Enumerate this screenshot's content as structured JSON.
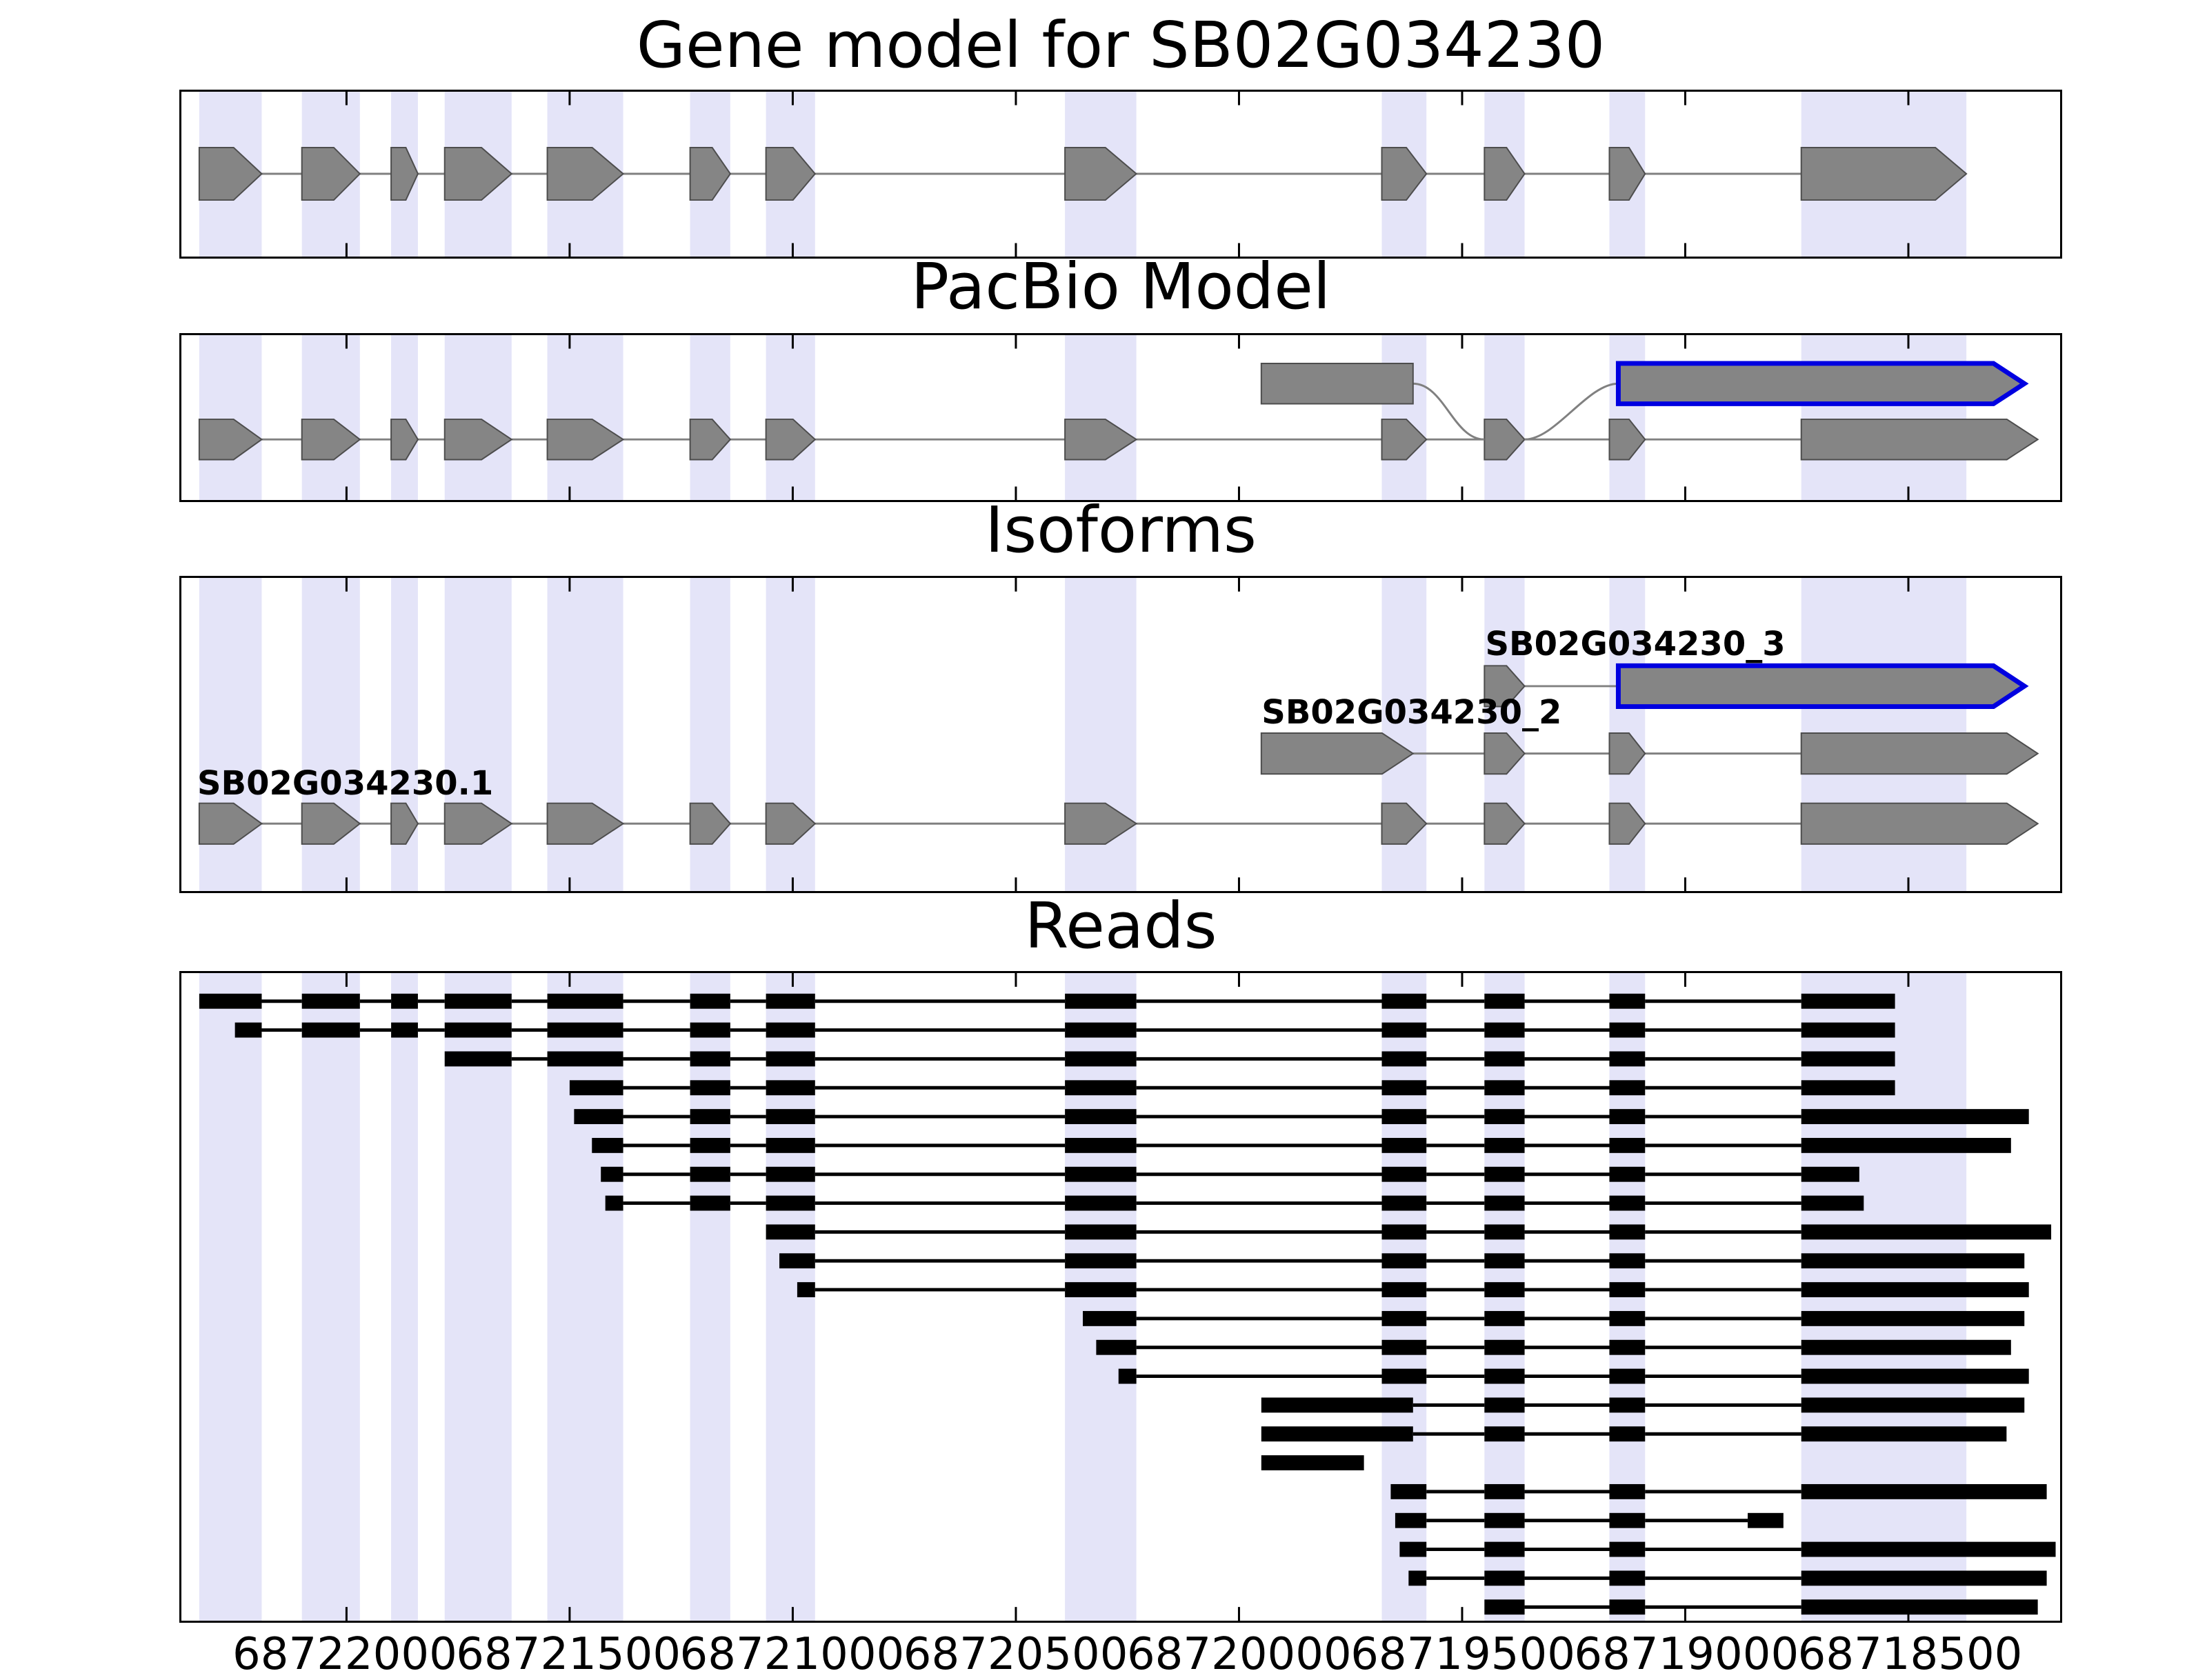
{
  "titles": {
    "gene": "Gene model for SB02G034230",
    "pacbio": "PacBio Model",
    "isoforms": "Isoforms",
    "reads": "Reads"
  },
  "colors": {
    "exon_fill": "#858585",
    "exon_edge": "#4d4d4d",
    "highlight_band": "#e4e4f8",
    "blue_outline": "#0000e0",
    "read": "#000000",
    "connector": "#808080",
    "axis": "#000000"
  },
  "chart_data": {
    "type": "genome-tracks",
    "title": "Gene model for SB02G034230",
    "coordinate_axis": {
      "orientation": "reversed",
      "left_value": 68722370,
      "right_value": 68718160,
      "ticks": [
        68722000,
        68721500,
        68721000,
        68720500,
        68720000,
        68719500,
        68719000,
        68718500
      ],
      "tick_labels": [
        "68722000",
        "68721500",
        "68721000",
        "68720500",
        "68720000",
        "68719500",
        "68719000",
        "68718500"
      ]
    },
    "highlight_regions": [
      [
        68722330,
        68722190
      ],
      [
        68722100,
        68721970
      ],
      [
        68721900,
        68721840
      ],
      [
        68721780,
        68721630
      ],
      [
        68721550,
        68721380
      ],
      [
        68721230,
        68721140
      ],
      [
        68721060,
        68720950
      ],
      [
        68720390,
        68720230
      ],
      [
        68719680,
        68719580
      ],
      [
        68719450,
        68719360
      ],
      [
        68719170,
        68719090
      ],
      [
        68718740,
        68718370
      ]
    ],
    "gene_model": {
      "blocks": [
        [
          68722330,
          68722190
        ],
        [
          68722100,
          68721970
        ],
        [
          68721900,
          68721840
        ],
        [
          68721780,
          68721630
        ],
        [
          68721550,
          68721380
        ],
        [
          68721230,
          68721140
        ],
        [
          68721060,
          68720950
        ],
        [
          68720390,
          68720230
        ],
        [
          68719680,
          68719580
        ],
        [
          68719450,
          68719360
        ],
        [
          68719170,
          68719090
        ],
        [
          68718740,
          68718370
        ]
      ]
    },
    "pacbio_model": {
      "main_blocks": [
        [
          68722330,
          68722190
        ],
        [
          68722100,
          68721970
        ],
        [
          68721900,
          68721840
        ],
        [
          68721780,
          68721630
        ],
        [
          68721550,
          68721380
        ],
        [
          68721230,
          68721140
        ],
        [
          68721060,
          68720950
        ],
        [
          68720390,
          68720230
        ],
        [
          68719680,
          68719580
        ],
        [
          68719450,
          68719360
        ],
        [
          68719170,
          68719090
        ],
        [
          68718740,
          68718210
        ]
      ],
      "upstream_block": [
        68719950,
        68719610
      ],
      "highlighted_block": [
        68719150,
        68718240
      ],
      "junction_via_block": [
        68719450,
        68719360
      ]
    },
    "isoforms": [
      {
        "name": "SB02G034230_3",
        "blocks": [
          [
            68719450,
            68719360
          ]
        ],
        "highlighted_blocks": [
          [
            68719150,
            68718240
          ]
        ]
      },
      {
        "name": "SB02G034230_2",
        "blocks": [
          [
            68719950,
            68719610
          ],
          [
            68719450,
            68719360
          ],
          [
            68719170,
            68719090
          ],
          [
            68718740,
            68718210
          ]
        ],
        "highlighted_blocks": []
      },
      {
        "name": "SB02G034230.1",
        "blocks": [
          [
            68722330,
            68722190
          ],
          [
            68722100,
            68721970
          ],
          [
            68721900,
            68721840
          ],
          [
            68721780,
            68721630
          ],
          [
            68721550,
            68721380
          ],
          [
            68721230,
            68721140
          ],
          [
            68721060,
            68720950
          ],
          [
            68720390,
            68720230
          ],
          [
            68719680,
            68719580
          ],
          [
            68719450,
            68719360
          ],
          [
            68719170,
            68719090
          ],
          [
            68718740,
            68718210
          ]
        ],
        "highlighted_blocks": []
      }
    ],
    "reads": [
      {
        "blocks": [
          [
            68722330,
            68722190
          ],
          [
            68722100,
            68721970
          ],
          [
            68721900,
            68721840
          ],
          [
            68721780,
            68721630
          ],
          [
            68721550,
            68721380
          ],
          [
            68721230,
            68721140
          ],
          [
            68721060,
            68720950
          ],
          [
            68720390,
            68720230
          ],
          [
            68719680,
            68719580
          ],
          [
            68719450,
            68719360
          ],
          [
            68719170,
            68719090
          ],
          [
            68718740,
            68718530
          ]
        ]
      },
      {
        "blocks": [
          [
            68722250,
            68722190
          ],
          [
            68722100,
            68721970
          ],
          [
            68721900,
            68721840
          ],
          [
            68721780,
            68721630
          ],
          [
            68721550,
            68721380
          ],
          [
            68721230,
            68721140
          ],
          [
            68721060,
            68720950
          ],
          [
            68720390,
            68720230
          ],
          [
            68719680,
            68719580
          ],
          [
            68719450,
            68719360
          ],
          [
            68719170,
            68719090
          ],
          [
            68718740,
            68718530
          ]
        ]
      },
      {
        "blocks": [
          [
            68721780,
            68721630
          ],
          [
            68721550,
            68721380
          ],
          [
            68721230,
            68721140
          ],
          [
            68721060,
            68720950
          ],
          [
            68720390,
            68720230
          ],
          [
            68719680,
            68719580
          ],
          [
            68719450,
            68719360
          ],
          [
            68719170,
            68719090
          ],
          [
            68718740,
            68718530
          ]
        ]
      },
      {
        "blocks": [
          [
            68721500,
            68721380
          ],
          [
            68721230,
            68721140
          ],
          [
            68721060,
            68720950
          ],
          [
            68720390,
            68720230
          ],
          [
            68719680,
            68719580
          ],
          [
            68719450,
            68719360
          ],
          [
            68719170,
            68719090
          ],
          [
            68718740,
            68718530
          ]
        ]
      },
      {
        "blocks": [
          [
            68721490,
            68721380
          ],
          [
            68721230,
            68721140
          ],
          [
            68721060,
            68720950
          ],
          [
            68720390,
            68720230
          ],
          [
            68719680,
            68719580
          ],
          [
            68719450,
            68719360
          ],
          [
            68719170,
            68719090
          ],
          [
            68718740,
            68718230
          ]
        ]
      },
      {
        "blocks": [
          [
            68721450,
            68721380
          ],
          [
            68721230,
            68721140
          ],
          [
            68721060,
            68720950
          ],
          [
            68720390,
            68720230
          ],
          [
            68719680,
            68719580
          ],
          [
            68719450,
            68719360
          ],
          [
            68719170,
            68719090
          ],
          [
            68718740,
            68718270
          ]
        ]
      },
      {
        "blocks": [
          [
            68721430,
            68721380
          ],
          [
            68721230,
            68721140
          ],
          [
            68721060,
            68720950
          ],
          [
            68720390,
            68720230
          ],
          [
            68719680,
            68719580
          ],
          [
            68719450,
            68719360
          ],
          [
            68719170,
            68719090
          ],
          [
            68718740,
            68718610
          ]
        ]
      },
      {
        "blocks": [
          [
            68721420,
            68721380
          ],
          [
            68721230,
            68721140
          ],
          [
            68721060,
            68720950
          ],
          [
            68720390,
            68720230
          ],
          [
            68719680,
            68719580
          ],
          [
            68719450,
            68719360
          ],
          [
            68719170,
            68719090
          ],
          [
            68718740,
            68718600
          ]
        ]
      },
      {
        "blocks": [
          [
            68721060,
            68720950
          ],
          [
            68720390,
            68720230
          ],
          [
            68719680,
            68719580
          ],
          [
            68719450,
            68719360
          ],
          [
            68719170,
            68719090
          ],
          [
            68718740,
            68718180
          ]
        ]
      },
      {
        "blocks": [
          [
            68721030,
            68720950
          ],
          [
            68720390,
            68720230
          ],
          [
            68719680,
            68719580
          ],
          [
            68719450,
            68719360
          ],
          [
            68719170,
            68719090
          ],
          [
            68718740,
            68718240
          ]
        ]
      },
      {
        "blocks": [
          [
            68720990,
            68720950
          ],
          [
            68720390,
            68720230
          ],
          [
            68719680,
            68719580
          ],
          [
            68719450,
            68719360
          ],
          [
            68719170,
            68719090
          ],
          [
            68718740,
            68718230
          ]
        ]
      },
      {
        "blocks": [
          [
            68720350,
            68720230
          ],
          [
            68719680,
            68719580
          ],
          [
            68719450,
            68719360
          ],
          [
            68719170,
            68719090
          ],
          [
            68718740,
            68718240
          ]
        ]
      },
      {
        "blocks": [
          [
            68720320,
            68720230
          ],
          [
            68719680,
            68719580
          ],
          [
            68719450,
            68719360
          ],
          [
            68719170,
            68719090
          ],
          [
            68718740,
            68718270
          ]
        ]
      },
      {
        "blocks": [
          [
            68720270,
            68720230
          ],
          [
            68719680,
            68719580
          ],
          [
            68719450,
            68719360
          ],
          [
            68719170,
            68719090
          ],
          [
            68718740,
            68718230
          ]
        ]
      },
      {
        "blocks": [
          [
            68719950,
            68719610
          ],
          [
            68719450,
            68719360
          ],
          [
            68719170,
            68719090
          ],
          [
            68718740,
            68718240
          ]
        ]
      },
      {
        "blocks": [
          [
            68719950,
            68719610
          ],
          [
            68719450,
            68719360
          ],
          [
            68719170,
            68719090
          ],
          [
            68718740,
            68718280
          ]
        ]
      },
      {
        "blocks": [
          [
            68719950,
            68719720
          ]
        ]
      },
      {
        "blocks": [
          [
            68719660,
            68719580
          ],
          [
            68719450,
            68719360
          ],
          [
            68719170,
            68719090
          ],
          [
            68718740,
            68718190
          ]
        ]
      },
      {
        "blocks": [
          [
            68719650,
            68719580
          ],
          [
            68719450,
            68719360
          ],
          [
            68719170,
            68719090
          ],
          [
            68718860,
            68718780
          ]
        ]
      },
      {
        "blocks": [
          [
            68719640,
            68719580
          ],
          [
            68719450,
            68719360
          ],
          [
            68719170,
            68719090
          ],
          [
            68718740,
            68718170
          ]
        ]
      },
      {
        "blocks": [
          [
            68719620,
            68719580
          ],
          [
            68719450,
            68719360
          ],
          [
            68719170,
            68719090
          ],
          [
            68718740,
            68718190
          ]
        ]
      },
      {
        "blocks": [
          [
            68719450,
            68719360
          ],
          [
            68719170,
            68719090
          ],
          [
            68718740,
            68718210
          ]
        ]
      }
    ]
  }
}
